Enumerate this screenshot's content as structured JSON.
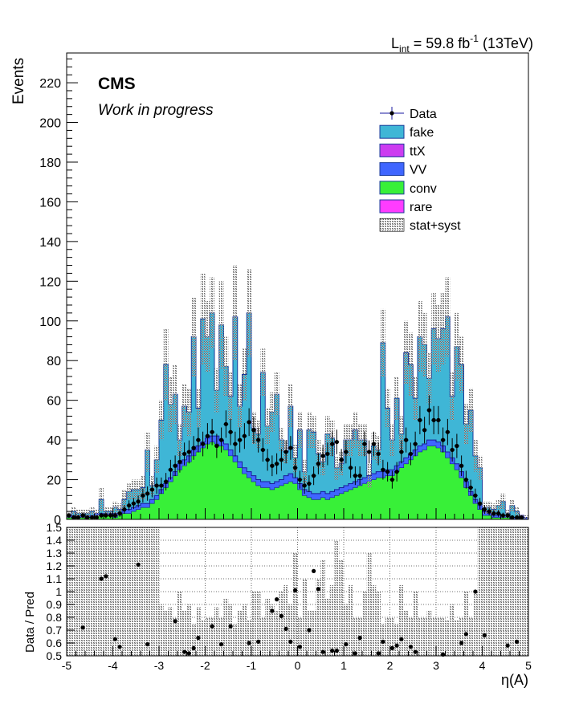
{
  "header": {
    "lumi_prefix": "L",
    "lumi_sub": "int",
    "lumi_mid": " = 59.8 fb",
    "lumi_sup": "-1",
    "lumi_suffix": " (13TeV)"
  },
  "labels": {
    "cms": "CMS",
    "work": "Work in progress",
    "ylabel": "Events",
    "ratio_ylabel": "Data / Pred",
    "xlabel": "η(A)"
  },
  "chart_data": [
    {
      "type": "bar",
      "stacked": true,
      "xlim": [
        -5,
        5
      ],
      "ylim": [
        0,
        235
      ],
      "bins": 100,
      "y_ticks": [
        0,
        20,
        40,
        60,
        80,
        100,
        120,
        140,
        160,
        180,
        200,
        220
      ],
      "x_ticks": [
        -5,
        -4,
        -3,
        -2,
        -1,
        0,
        1,
        2,
        3,
        4,
        5
      ],
      "grid": false,
      "legend": {
        "position": "top-right",
        "entries": [
          {
            "label": "Data",
            "kind": "marker",
            "color": "#000000"
          },
          {
            "label": "fake",
            "kind": "fill",
            "color": "#3fb6d6"
          },
          {
            "label": "ttX",
            "kind": "fill",
            "color": "#cc3cf0"
          },
          {
            "label": "VV",
            "kind": "fill",
            "color": "#3f66ff"
          },
          {
            "label": "conv",
            "kind": "fill",
            "color": "#38f038"
          },
          {
            "label": "rare",
            "kind": "fill",
            "color": "#ff3cff"
          },
          {
            "label": "stat+syst",
            "kind": "hatch",
            "color": "#888888"
          }
        ]
      },
      "series_colors": {
        "conv": "#38f038",
        "VV": "#3f66ff",
        "fake": "#3fb6d6"
      },
      "conv": [
        1,
        1,
        1,
        1,
        1,
        1,
        2,
        2,
        2,
        2,
        1,
        2,
        3,
        3,
        4,
        5,
        6,
        6,
        8,
        10,
        13,
        16,
        19,
        22,
        25,
        27,
        29,
        32,
        34,
        36,
        38,
        39,
        38,
        37,
        35,
        32,
        29,
        26,
        23,
        21,
        19,
        17,
        16,
        16,
        15,
        16,
        17,
        18,
        19,
        18,
        15,
        12,
        11,
        10,
        10,
        11,
        10,
        11,
        12,
        13,
        14,
        15,
        16,
        17,
        18,
        19,
        20,
        21,
        21,
        22,
        22,
        24,
        26,
        28,
        30,
        32,
        34,
        35,
        37,
        37,
        36,
        34,
        31,
        28,
        25,
        21,
        16,
        12,
        8,
        5,
        2,
        2,
        1,
        1,
        1,
        1,
        0,
        0,
        1,
        0
      ],
      "vv": [
        1,
        1,
        1,
        1,
        1,
        1,
        1,
        1,
        1,
        1,
        2,
        1,
        2,
        2,
        2,
        2,
        2,
        2,
        2,
        2,
        2,
        2,
        2,
        2,
        3,
        3,
        3,
        3,
        3,
        3,
        3,
        3,
        4,
        3,
        3,
        3,
        3,
        3,
        3,
        3,
        3,
        3,
        3,
        3,
        3,
        3,
        3,
        4,
        4,
        3,
        3,
        3,
        3,
        3,
        3,
        3,
        3,
        3,
        3,
        3,
        3,
        3,
        3,
        3,
        3,
        3,
        3,
        3,
        3,
        3,
        3,
        3,
        3,
        3,
        3,
        3,
        3,
        3,
        3,
        3,
        3,
        3,
        3,
        3,
        3,
        3,
        3,
        2,
        2,
        2,
        2,
        1,
        1,
        1,
        1,
        1,
        1,
        1,
        1,
        1
      ],
      "total": [
        2,
        4,
        3,
        3,
        3,
        4,
        3,
        10,
        4,
        4,
        6,
        5,
        10,
        14,
        15,
        15,
        16,
        35,
        17,
        30,
        50,
        78,
        58,
        63,
        40,
        57,
        54,
        92,
        56,
        101,
        92,
        104,
        65,
        98,
        77,
        62,
        102,
        57,
        73,
        104,
        46,
        43,
        74,
        47,
        54,
        63,
        40,
        34,
        57,
        31,
        45,
        24,
        45,
        44,
        33,
        29,
        43,
        41,
        26,
        28,
        40,
        40,
        45,
        40,
        40,
        22,
        37,
        35,
        89,
        56,
        40,
        61,
        43,
        84,
        78,
        61,
        92,
        88,
        71,
        96,
        91,
        96,
        102,
        62,
        87,
        78,
        48,
        55,
        32,
        26,
        6,
        6,
        5,
        7,
        9,
        3,
        7,
        4,
        1,
        1
      ],
      "unc_lo": [
        1,
        2,
        1,
        1,
        1,
        2,
        1,
        4,
        2,
        2,
        3,
        2,
        5,
        10,
        10,
        10,
        10,
        24,
        12,
        23,
        40,
        60,
        44,
        48,
        32,
        46,
        42,
        72,
        46,
        78,
        74,
        86,
        54,
        76,
        62,
        50,
        80,
        46,
        60,
        82,
        38,
        36,
        62,
        38,
        44,
        52,
        34,
        28,
        46,
        24,
        36,
        18,
        36,
        36,
        26,
        22,
        34,
        32,
        20,
        22,
        32,
        32,
        36,
        32,
        32,
        16,
        30,
        28,
        72,
        46,
        32,
        50,
        34,
        68,
        62,
        50,
        74,
        72,
        58,
        78,
        74,
        78,
        82,
        50,
        70,
        64,
        38,
        44,
        24,
        20,
        3,
        3,
        2,
        4,
        5,
        1,
        4,
        2,
        0,
        0
      ],
      "unc_hi": [
        3,
        6,
        5,
        5,
        5,
        6,
        5,
        16,
        6,
        6,
        9,
        8,
        15,
        18,
        20,
        20,
        22,
        44,
        22,
        37,
        60,
        96,
        72,
        78,
        48,
        68,
        66,
        112,
        66,
        124,
        110,
        122,
        76,
        120,
        92,
        74,
        128,
        68,
        86,
        126,
        54,
        50,
        86,
        56,
        64,
        74,
        46,
        40,
        68,
        38,
        54,
        30,
        54,
        52,
        40,
        36,
        52,
        50,
        32,
        34,
        48,
        48,
        54,
        48,
        48,
        28,
        44,
        42,
        106,
        66,
        48,
        72,
        52,
        100,
        94,
        72,
        110,
        104,
        84,
        114,
        108,
        114,
        122,
        74,
        104,
        92,
        58,
        66,
        40,
        32,
        9,
        9,
        8,
        10,
        13,
        5,
        10,
        6,
        2,
        2
      ],
      "data": [
        2,
        1,
        1,
        2,
        1,
        1,
        1,
        2,
        2,
        2,
        2,
        3,
        5,
        7,
        8,
        9,
        12,
        13,
        15,
        17,
        17,
        19,
        25,
        27,
        29,
        33,
        34,
        36,
        40,
        38,
        42,
        44,
        37,
        40,
        48,
        44,
        38,
        40,
        42,
        49,
        45,
        40,
        35,
        30,
        27,
        28,
        30,
        34,
        36,
        26,
        20,
        17,
        18,
        22,
        28,
        32,
        33,
        38,
        39,
        30,
        34,
        26,
        22,
        22,
        38,
        34,
        38,
        33,
        25,
        24,
        20,
        24,
        34,
        40,
        33,
        38,
        50,
        45,
        55,
        50,
        50,
        40,
        44,
        35,
        37,
        27,
        20,
        16,
        12,
        8,
        5,
        4,
        3,
        3,
        2,
        2,
        1,
        1,
        1,
        0
      ],
      "data_err": [
        1.4,
        1,
        1,
        1.4,
        1,
        1,
        1,
        1.4,
        1.4,
        1.4,
        1.4,
        1.7,
        2.2,
        2.6,
        2.8,
        3,
        3.5,
        3.6,
        3.9,
        4.1,
        4.1,
        4.4,
        5,
        5.2,
        5.4,
        5.7,
        5.8,
        6,
        6.3,
        6.2,
        6.5,
        6.6,
        6.1,
        6.3,
        6.9,
        6.6,
        6.2,
        6.3,
        6.5,
        7,
        6.7,
        6.3,
        5.9,
        5.5,
        5.2,
        5.3,
        5.5,
        5.8,
        6,
        5.1,
        4.5,
        4.1,
        4.2,
        4.7,
        5.3,
        5.7,
        5.7,
        6.2,
        6.2,
        5.5,
        5.8,
        5.1,
        4.7,
        4.7,
        6.2,
        5.8,
        6.2,
        5.7,
        5,
        4.9,
        4.5,
        4.9,
        5.8,
        6.3,
        5.7,
        6.2,
        7.1,
        6.7,
        7.4,
        7.1,
        7.1,
        6.3,
        6.6,
        5.9,
        6.1,
        5.2,
        4.5,
        4,
        3.5,
        2.8,
        2.2,
        2,
        1.7,
        1.7,
        1.4,
        1.4,
        1,
        1,
        1,
        0
      ]
    },
    {
      "type": "scatter",
      "ylim": [
        0.5,
        1.5
      ],
      "xlim": [
        -5,
        5
      ],
      "y_ticks": [
        0.5,
        0.6,
        0.7,
        0.8,
        0.9,
        1,
        1.1,
        1.2,
        1.3,
        1.4,
        1.5
      ],
      "x_ticks": [
        -5,
        -4,
        -3,
        -2,
        -1,
        0,
        1,
        2,
        3,
        4,
        5
      ],
      "grid": true,
      "band_lo": [
        0.5,
        0.5,
        0.5,
        0.5,
        0.5,
        0.5,
        0.5,
        0.5,
        0.5,
        0.5,
        0.5,
        0.5,
        0.5,
        0.5,
        0.5,
        0.5,
        0.5,
        0.5,
        0.5,
        0.5,
        0.5,
        0.5,
        0.5,
        0.5,
        0.5,
        0.5,
        0.5,
        0.5,
        0.5,
        0.5,
        0.5,
        0.5,
        0.5,
        0.5,
        0.5,
        0.5,
        0.5,
        0.5,
        0.5,
        0.5,
        0.5,
        0.5,
        0.5,
        0.5,
        0.5,
        0.5,
        0.5,
        0.5,
        0.5,
        0.5,
        0.5,
        0.5,
        0.5,
        0.5,
        0.5,
        0.5,
        0.5,
        0.5,
        0.5,
        0.5,
        0.5,
        0.5,
        0.5,
        0.5,
        0.5,
        0.5,
        0.5,
        0.5,
        0.5,
        0.5,
        0.5,
        0.5,
        0.5,
        0.5,
        0.5,
        0.5,
        0.5,
        0.5,
        0.5,
        0.5,
        0.5,
        0.5,
        0.5,
        0.5,
        0.5,
        0.5,
        0.5,
        0.5,
        0.5,
        0.5,
        0.5,
        0.5,
        0.5,
        0.5,
        0.5,
        0.5,
        0.5,
        0.5,
        0.5,
        0.5
      ],
      "band_hi": [
        1.5,
        1.5,
        1.5,
        1.5,
        1.5,
        1.5,
        1.5,
        1.5,
        1.5,
        1.5,
        1.5,
        1.5,
        1.5,
        1.5,
        1.5,
        1.5,
        1.5,
        1.5,
        1.5,
        1.5,
        0.9,
        0.85,
        0.88,
        0.8,
        1,
        0.85,
        0.9,
        0.75,
        0.88,
        0.78,
        0.8,
        0.8,
        0.88,
        0.8,
        0.95,
        0.9,
        0.75,
        0.85,
        0.9,
        0.78,
        1,
        1,
        0.8,
        0.95,
        0.9,
        0.85,
        1,
        1.05,
        0.9,
        1.3,
        0.8,
        1.1,
        0.85,
        0.85,
        1.1,
        1.25,
        0.95,
        1.05,
        1.4,
        1.25,
        0.9,
        1.05,
        0.8,
        0.8,
        1,
        1.3,
        1.05,
        1,
        0.75,
        0.8,
        0.8,
        0.75,
        1.05,
        0.85,
        0.8,
        1,
        0.8,
        0.8,
        0.85,
        0.8,
        0.8,
        0.8,
        0.78,
        0.9,
        0.78,
        0.8,
        1,
        0.8,
        1,
        1.5,
        1.5,
        1.5,
        1.5,
        1.5,
        1.5,
        1.5,
        1.5,
        1.5,
        1.5,
        1.5
      ],
      "points": [
        {
          "x": -4.65,
          "y": 0.72
        },
        {
          "x": -4.25,
          "y": 1.1
        },
        {
          "x": -4.15,
          "y": 1.12
        },
        {
          "x": -3.95,
          "y": 0.63
        },
        {
          "x": -3.85,
          "y": 0.57
        },
        {
          "x": -3.45,
          "y": 1.21
        },
        {
          "x": -3.25,
          "y": 0.59
        },
        {
          "x": -2.65,
          "y": 0.77
        },
        {
          "x": -2.45,
          "y": 0.53
        },
        {
          "x": -2.35,
          "y": 0.52
        },
        {
          "x": -2.25,
          "y": 0.56
        },
        {
          "x": -2.15,
          "y": 0.64
        },
        {
          "x": -1.85,
          "y": 0.73
        },
        {
          "x": -1.65,
          "y": 0.59
        },
        {
          "x": -1.45,
          "y": 0.73
        },
        {
          "x": -1.05,
          "y": 0.6
        },
        {
          "x": -0.85,
          "y": 0.61
        },
        {
          "x": -0.55,
          "y": 0.85
        },
        {
          "x": -0.45,
          "y": 0.94
        },
        {
          "x": -0.35,
          "y": 0.81
        },
        {
          "x": -0.25,
          "y": 0.71
        },
        {
          "x": -0.15,
          "y": 0.61
        },
        {
          "x": -0.05,
          "y": 1.01
        },
        {
          "x": 0.05,
          "y": 0.57
        },
        {
          "x": 0.25,
          "y": 0.7
        },
        {
          "x": 0.35,
          "y": 1.16
        },
        {
          "x": 0.45,
          "y": 1.02
        },
        {
          "x": 0.55,
          "y": 0.53
        },
        {
          "x": 0.75,
          "y": 0.54
        },
        {
          "x": 0.85,
          "y": 0.54
        },
        {
          "x": 1.05,
          "y": 0.59
        },
        {
          "x": 1.25,
          "y": 0.52
        },
        {
          "x": 1.35,
          "y": 0.64
        },
        {
          "x": 1.75,
          "y": 0.52
        },
        {
          "x": 1.85,
          "y": 0.61
        },
        {
          "x": 2.05,
          "y": 0.56
        },
        {
          "x": 2.15,
          "y": 0.58
        },
        {
          "x": 2.25,
          "y": 0.63
        },
        {
          "x": 2.45,
          "y": 0.57
        },
        {
          "x": 2.55,
          "y": 0.53
        },
        {
          "x": 3.15,
          "y": 0.51
        },
        {
          "x": 3.55,
          "y": 0.6
        },
        {
          "x": 3.65,
          "y": 0.67
        },
        {
          "x": 3.85,
          "y": 1.0
        },
        {
          "x": 4.05,
          "y": 0.66
        },
        {
          "x": 4.55,
          "y": 0.58
        },
        {
          "x": 4.75,
          "y": 0.61
        }
      ]
    }
  ]
}
